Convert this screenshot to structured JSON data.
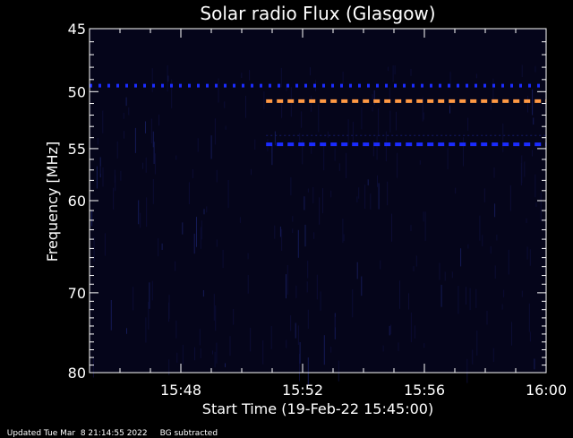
{
  "chart_data": {
    "type": "heatmap",
    "title": "Solar radio Flux (Glasgow)",
    "xlabel": "Start Time (19-Feb-22 15:45:00)",
    "ylabel": "Frequency [MHz]",
    "x_range": [
      "15:45",
      "16:00"
    ],
    "x_ticks": [
      "15:48",
      "15:52",
      "15:56",
      "16:00"
    ],
    "x_tick_minutes": [
      48,
      52,
      56,
      60
    ],
    "y_range": [
      45,
      80
    ],
    "y_scale": "log",
    "y_ticks": [
      "45",
      "50",
      "55",
      "60",
      "70",
      "80"
    ],
    "y_tick_values": [
      45,
      50,
      55,
      60,
      70,
      80
    ],
    "background_color": "#05051a",
    "features": [
      {
        "name": "",
        "freq_mhz": 49.5,
        "start_min": 45.0,
        "end_min": 60.0,
        "color": "#1a2bff",
        "style": "dotted"
      },
      {
        "name": "",
        "freq_mhz": 50.8,
        "start_min": 50.8,
        "end_min": 60.0,
        "color": "#ff9944",
        "style": "dashed"
      },
      {
        "name": "",
        "freq_mhz": 54.6,
        "start_min": 50.8,
        "end_min": 60.0,
        "color": "#1a2bff",
        "style": "dashed"
      },
      {
        "name": "",
        "freq_mhz": 53.8,
        "start_min": 50.8,
        "end_min": 60.0,
        "color": "#141a66",
        "style": "faint"
      }
    ]
  },
  "footer": {
    "updated": "Updated Tue Mar  8 21:14:55 2022",
    "note": "BG subtracted"
  }
}
